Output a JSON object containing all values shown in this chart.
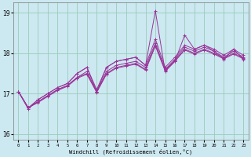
{
  "xlabel": "Windchill (Refroidissement éolien,°C)",
  "background_color": "#cce8f0",
  "grid_color": "#99ccbb",
  "line_color": "#993399",
  "xlim": [
    -0.5,
    23.5
  ],
  "ylim": [
    15.85,
    19.25
  ],
  "yticks": [
    16,
    17,
    18,
    19
  ],
  "xticks": [
    0,
    1,
    2,
    3,
    4,
    5,
    6,
    7,
    8,
    9,
    10,
    11,
    12,
    13,
    14,
    15,
    16,
    17,
    18,
    19,
    20,
    21,
    22,
    23
  ],
  "series": [
    [
      17.05,
      16.62,
      16.85,
      17.0,
      17.15,
      17.25,
      17.5,
      17.65,
      17.05,
      17.65,
      17.8,
      17.85,
      17.9,
      17.7,
      19.05,
      17.55,
      17.8,
      18.45,
      18.1,
      18.2,
      18.05,
      17.85,
      18.1,
      17.85
    ],
    [
      17.05,
      16.65,
      16.85,
      17.0,
      17.15,
      17.25,
      17.5,
      17.65,
      17.1,
      17.65,
      17.8,
      17.85,
      17.9,
      17.7,
      18.35,
      17.65,
      17.9,
      18.2,
      18.1,
      18.2,
      18.1,
      17.95,
      18.1,
      17.95
    ],
    [
      17.05,
      16.65,
      16.8,
      16.95,
      17.1,
      17.2,
      17.4,
      17.55,
      17.05,
      17.55,
      17.7,
      17.75,
      17.8,
      17.65,
      18.25,
      17.6,
      17.85,
      18.15,
      18.05,
      18.15,
      18.05,
      17.9,
      18.05,
      17.9
    ],
    [
      17.05,
      16.65,
      16.8,
      16.95,
      17.1,
      17.2,
      17.4,
      17.5,
      17.05,
      17.5,
      17.65,
      17.7,
      17.75,
      17.6,
      18.2,
      17.58,
      17.82,
      18.1,
      18.0,
      18.1,
      18.0,
      17.88,
      18.0,
      17.88
    ],
    [
      17.05,
      16.65,
      16.78,
      16.93,
      17.08,
      17.18,
      17.38,
      17.48,
      17.03,
      17.48,
      17.63,
      17.68,
      17.73,
      17.58,
      18.18,
      17.56,
      17.8,
      18.08,
      17.98,
      18.08,
      17.98,
      17.86,
      17.98,
      17.86
    ]
  ]
}
